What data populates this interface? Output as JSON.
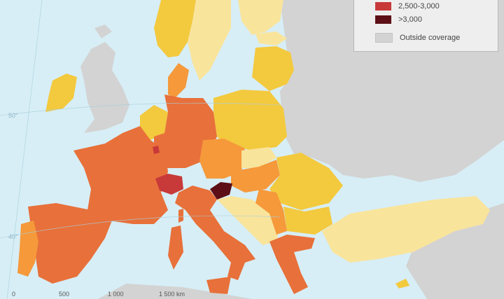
{
  "legend": {
    "items": [
      {
        "label": "2,500-3,000",
        "color": "#c8393a"
      },
      {
        "label": ">3,000",
        "color": "#5c0f16"
      },
      {
        "label": "Outside coverage",
        "color": "#d3d3d3"
      }
    ]
  },
  "classes": {
    "lowest": "#f9e49c",
    "low": "#f3c93e",
    "mid": "#f5993b",
    "high": "#e8703a",
    "higher": "#c8393a",
    "highest": "#5c0f16",
    "outside": "#d3d3d3",
    "sea": "#d7eef6"
  },
  "graticule": {
    "lat_50": "50°",
    "lat_40": "40°"
  },
  "scale_bar": {
    "ticks": [
      "0",
      "500",
      "1 000",
      "1 500 km"
    ]
  }
}
